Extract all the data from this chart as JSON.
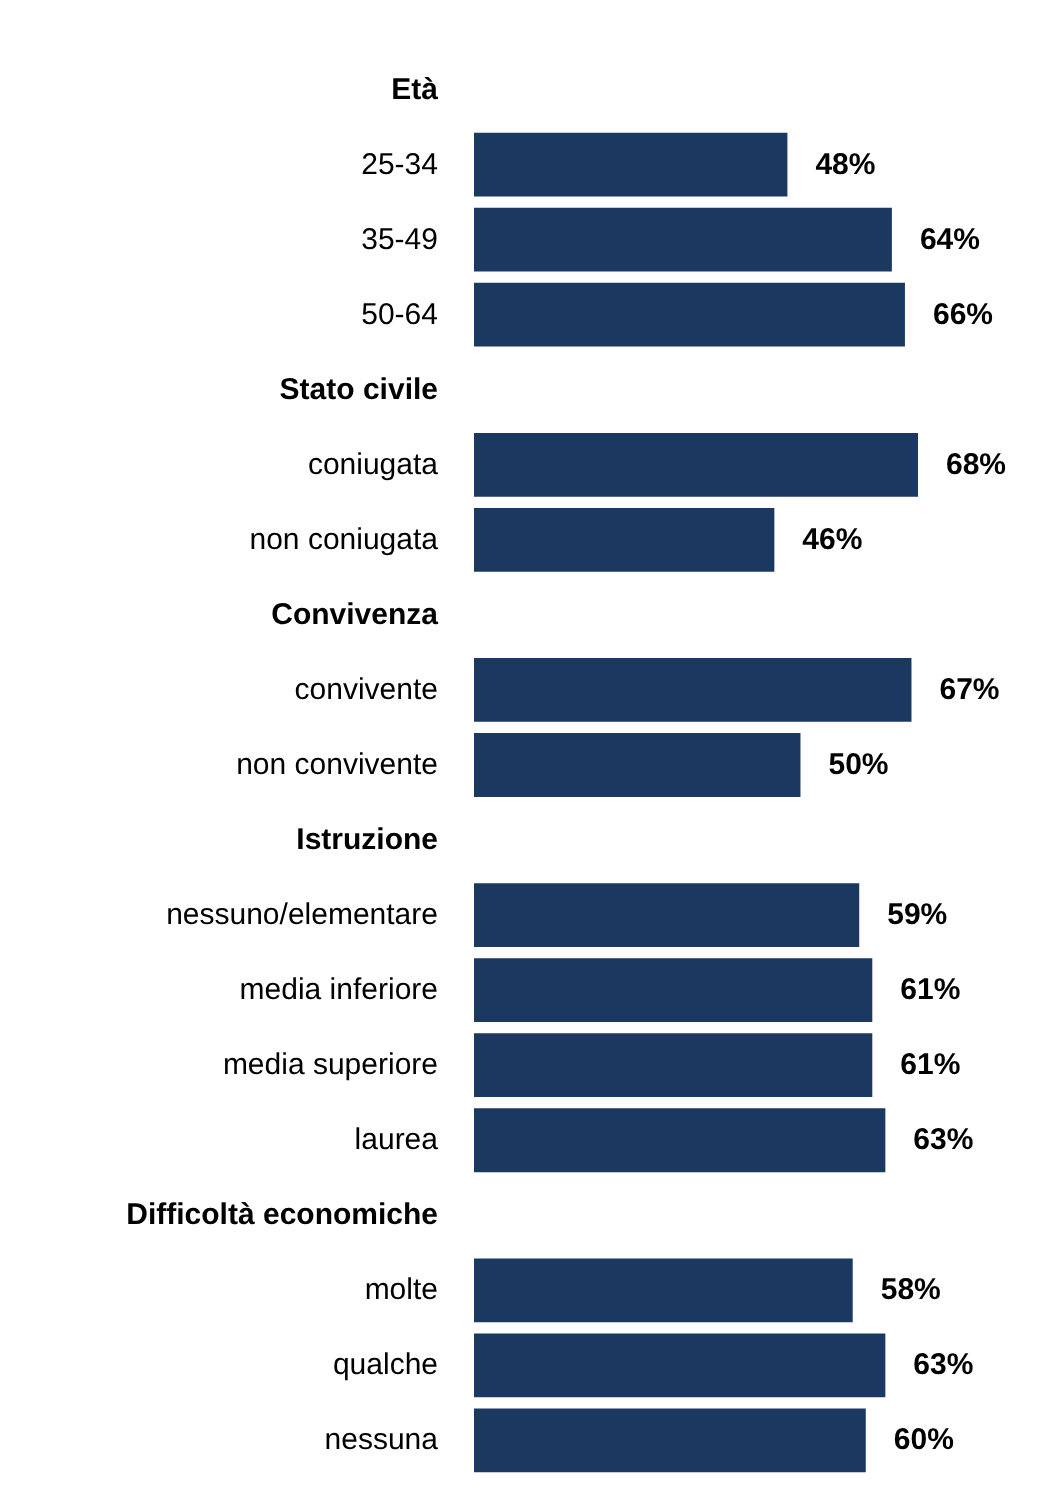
{
  "chart_data": {
    "type": "bar",
    "orientation": "horizontal",
    "color": "#1a3860",
    "categories": [
      "Età",
      "25-34",
      "35-49",
      "50-64",
      "Stato civile",
      "coniugata",
      "non coniugata",
      "Convivenza",
      "convivente",
      "non convivente",
      "Istruzione",
      "nessuno/elementare",
      "media inferiore",
      "media superiore",
      "laurea",
      "Difficoltà economiche",
      "molte",
      "qualche",
      "nessuna"
    ],
    "values": [
      null,
      48,
      64,
      66,
      null,
      68,
      46,
      null,
      67,
      50,
      null,
      59,
      61,
      61,
      63,
      null,
      58,
      63,
      60
    ],
    "value_labels": [
      null,
      "48%",
      "64%",
      "66%",
      null,
      "68%",
      "46%",
      null,
      "67%",
      "50%",
      null,
      "59%",
      "61%",
      "61%",
      "63%",
      null,
      "58%",
      "63%",
      "60%"
    ]
  }
}
